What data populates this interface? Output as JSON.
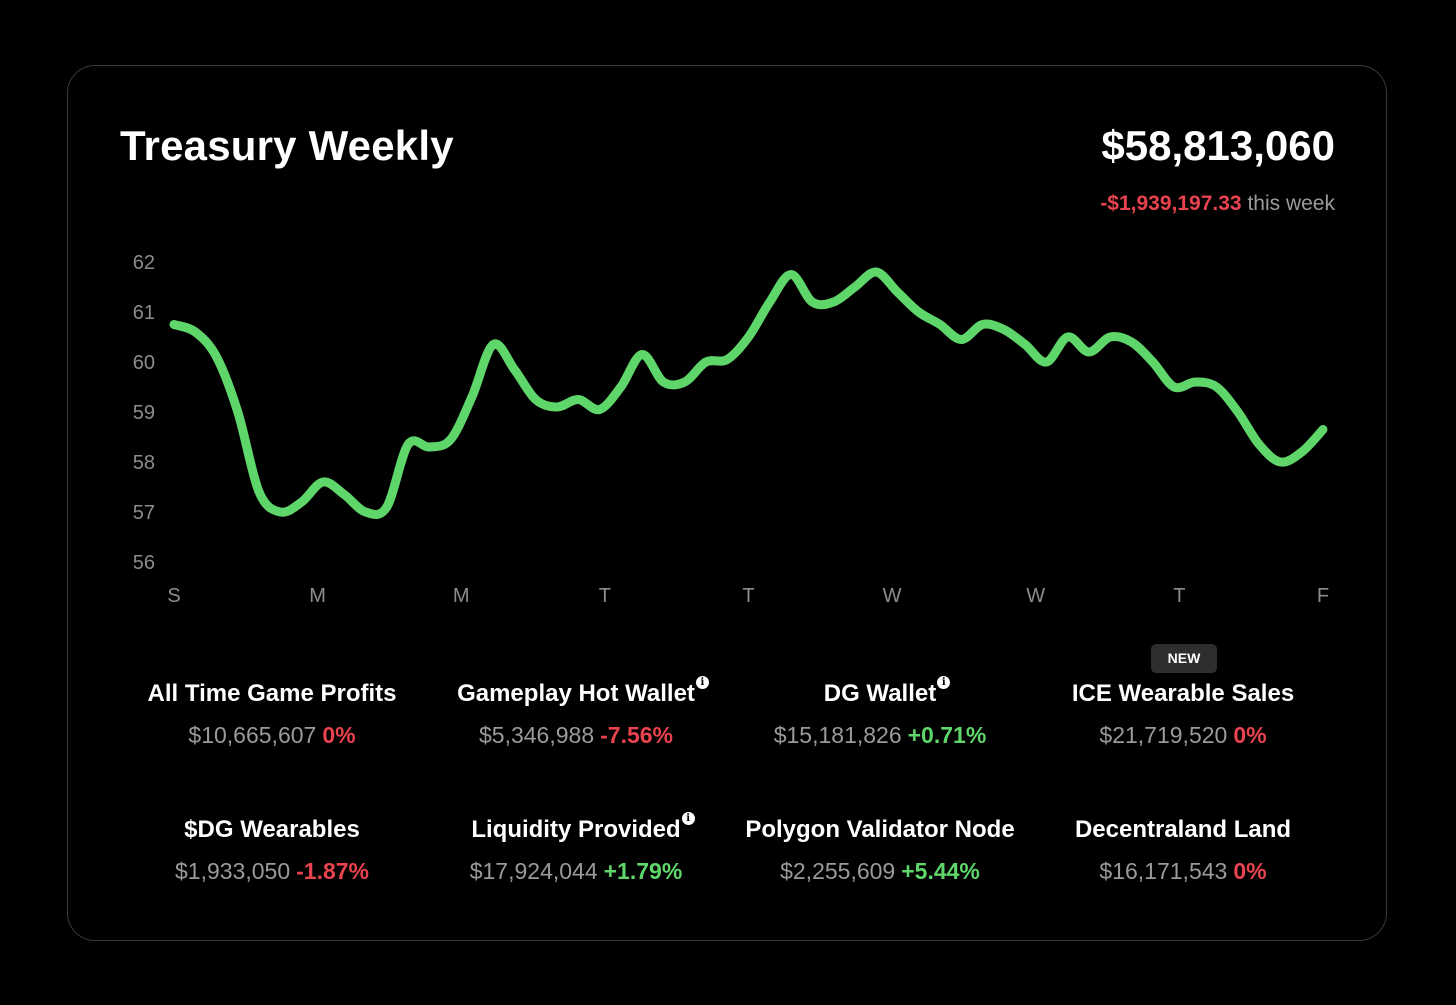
{
  "header": {
    "title": "Treasury Weekly",
    "total_value": "$58,813,060",
    "weekly_change_amount": "-$1,939,197.33",
    "weekly_change_suffix": "this week"
  },
  "badge": {
    "new_label": "NEW"
  },
  "stats": [
    {
      "label": "All Time Game Profits",
      "value": "$10,665,607",
      "change": "0%",
      "direction": "neg",
      "info": false
    },
    {
      "label": "Gameplay Hot Wallet",
      "value": "$5,346,988",
      "change": "-7.56%",
      "direction": "neg",
      "info": true
    },
    {
      "label": "DG Wallet",
      "value": "$15,181,826",
      "change": "+0.71%",
      "direction": "pos",
      "info": true
    },
    {
      "label": "ICE Wearable Sales",
      "value": "$21,719,520",
      "change": "0%",
      "direction": "neg",
      "info": false
    },
    {
      "label": "$DG Wearables",
      "value": "$1,933,050",
      "change": "-1.87%",
      "direction": "neg",
      "info": false
    },
    {
      "label": "Liquidity Provided",
      "value": "$17,924,044",
      "change": "+1.79%",
      "direction": "pos",
      "info": true
    },
    {
      "label": "Polygon Validator Node",
      "value": "$2,255,609",
      "change": "+5.44%",
      "direction": "pos",
      "info": false
    },
    {
      "label": "Decentraland Land",
      "value": "$16,171,543",
      "change": "0%",
      "direction": "neg",
      "info": false
    }
  ],
  "colors": {
    "line": "#5fd66a",
    "negative": "#e8434f",
    "positive": "#5fd66a",
    "muted": "#9a9a9a",
    "background": "#000000"
  },
  "chart_data": {
    "type": "line",
    "title": "",
    "xlabel": "",
    "ylabel": "",
    "x_tick_labels": [
      "S",
      "M",
      "M",
      "T",
      "T",
      "W",
      "W",
      "T",
      "F"
    ],
    "y_ticks": [
      62,
      61,
      60,
      59,
      58,
      57,
      56
    ],
    "ylim": [
      56,
      62
    ],
    "grid": false,
    "series": [
      {
        "values": [
          60.75,
          60.6,
          60.1,
          59.0,
          57.4,
          57.0,
          57.2,
          57.6,
          57.35,
          57.0,
          57.1,
          58.35,
          58.3,
          58.45,
          59.3,
          60.35,
          59.85,
          59.25,
          59.1,
          59.25,
          59.05,
          59.5,
          60.15,
          59.6,
          59.6,
          60.0,
          60.05,
          60.5,
          61.2,
          61.75,
          61.2,
          61.2,
          61.5,
          61.8,
          61.4,
          61.0,
          60.75,
          60.45,
          60.75,
          60.65,
          60.35,
          60.0,
          60.5,
          60.2,
          60.5,
          60.4,
          60.0,
          59.5,
          59.6,
          59.5,
          59.0,
          58.35,
          58.0,
          58.2,
          58.65
        ]
      }
    ]
  }
}
